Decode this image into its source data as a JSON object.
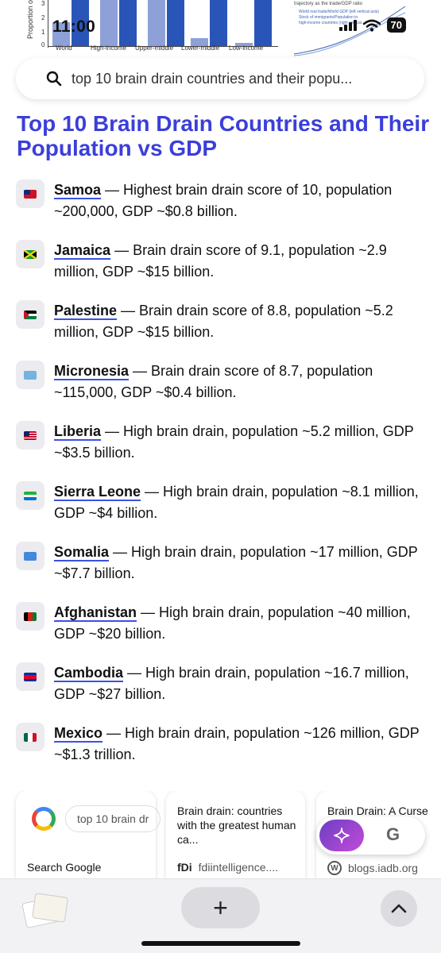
{
  "status_bar": {
    "time": "11:00",
    "battery": "70"
  },
  "top_images": {
    "chart_ylabel": "Proportion of na",
    "chart_ticks": [
      "3",
      "2",
      "1",
      "0"
    ],
    "chart_categories": [
      "World",
      "High-income",
      "Upper-middle",
      "Lower-middle",
      "Low-income"
    ],
    "graph_title": "trajectory as the trade/GDP ratio",
    "graph_legend": [
      "World real trade/World GDP (left vertical axis)",
      "Stock of immigrants/Population in",
      "high-income countries (right vertical..."
    ]
  },
  "search": {
    "query": "top 10 brain drain countries and their popu..."
  },
  "heading": "Top 10 Brain Drain Countries and Their Population vs GDP",
  "items": [
    {
      "country": "Samoa",
      "text": " — Highest brain drain score of 10, population ~200,000, GDP ~$0.8 billion."
    },
    {
      "country": "Jamaica",
      "text": " — Brain drain score of 9.1, population ~2.9 million, GDP ~$15 billion."
    },
    {
      "country": "Palestine",
      "text": " — Brain drain score of 8.8, population ~5.2 million, GDP ~$15 billion."
    },
    {
      "country": "Micronesia",
      "text": " — Brain drain score of 8.7, population ~115,000, GDP ~$0.4 billion."
    },
    {
      "country": "Liberia",
      "text": " — High brain drain, population ~5.2 million, GDP ~$3.5 billion."
    },
    {
      "country": "Sierra Leone",
      "text": " — High brain drain, population ~8.1 million, GDP ~$4 billion."
    },
    {
      "country": "Somalia",
      "text": " — High brain drain, population ~17 million, GDP ~$7.7 billion."
    },
    {
      "country": "Afghanistan",
      "text": " — High brain drain, population ~40 million, GDP ~$20 billion."
    },
    {
      "country": "Cambodia",
      "text": " — High brain drain, population ~16.7 million, GDP ~$27 billion."
    },
    {
      "country": "Mexico",
      "text": " — High brain drain, population ~126 million, GDP ~$1.3 trillion."
    }
  ],
  "cards": {
    "google": {
      "query": "top 10 brain dr",
      "label": "Search Google"
    },
    "card2": {
      "title": "Brain drain: countries with the greatest human ca...",
      "source": "fdiintelligence....",
      "source_logo": "fDi"
    },
    "card3": {
      "title": "Brain Drain: A Curse",
      "source": "blogs.iadb.org"
    }
  },
  "fab": {
    "g_label": "G"
  },
  "bottom_bar": {
    "plus_label": "+"
  },
  "colors": {
    "accent": "#3b3fd9",
    "underline": "#3b52e0"
  }
}
